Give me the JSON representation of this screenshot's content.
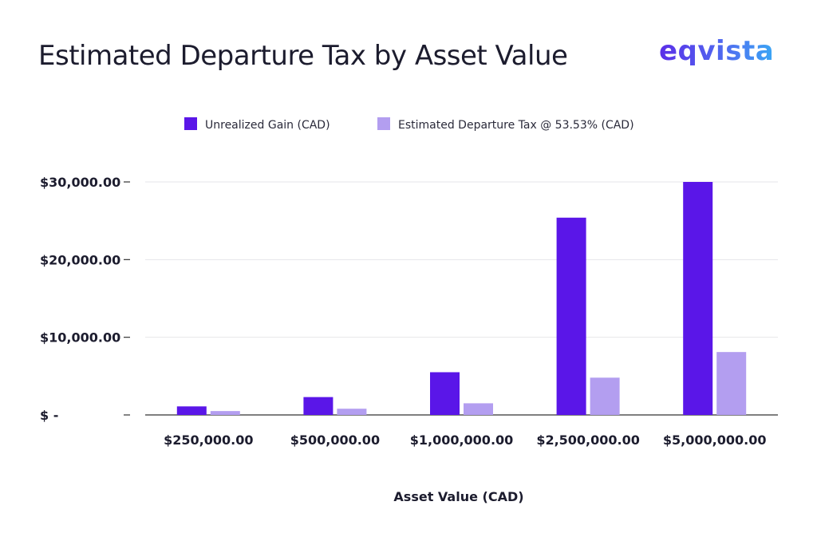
{
  "header": {
    "title": "Estimated Departure Tax by Asset Value",
    "logo_text": "eqvista"
  },
  "colors": {
    "unrealized_gain": "#5a16e8",
    "departure_tax": "#b39ef0",
    "gridline": "#e6e6ea",
    "axis_line": "#333333"
  },
  "chart_data": {
    "type": "bar",
    "categories": [
      "$250,000.00",
      "$500,000.00",
      "$1,000,000.00",
      "$2,500,000.00",
      "$5,000,000.00"
    ],
    "series": [
      {
        "name": "Unrealized Gain (CAD)",
        "values": [
          1100,
          2300,
          5500,
          25400,
          30000
        ]
      },
      {
        "name": "Estimated Departure Tax @ 53.53% (CAD)",
        "values": [
          500,
          800,
          1500,
          4800,
          8100
        ]
      }
    ],
    "ylim": [
      0,
      30000
    ],
    "yticks": [
      0,
      10000,
      20000,
      30000
    ],
    "ytick_labels": [
      "$ -",
      "$10,000.00",
      "$20,000.00",
      "$30,000.00"
    ],
    "xlabel": "Asset Value (CAD)",
    "ylabel": "",
    "grid": true,
    "legend_position": "top-center"
  }
}
